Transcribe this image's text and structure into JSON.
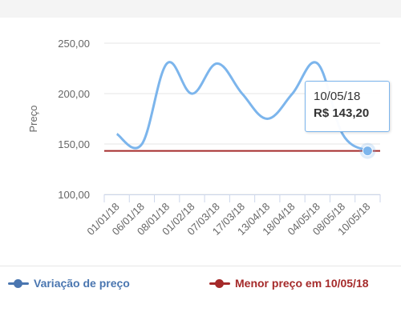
{
  "chart_data": {
    "type": "line",
    "ylabel": "Preço",
    "xlabel": "",
    "ylim": [
      100,
      250
    ],
    "y_ticks": [
      "100,00",
      "150,00",
      "200,00",
      "250,00"
    ],
    "y_tick_values": [
      100,
      150,
      200,
      250
    ],
    "grid": true,
    "categories": [
      "01/01/18",
      "06/01/18",
      "08/01/18",
      "01/02/18",
      "07/03/18",
      "17/03/18",
      "13/04/18",
      "18/04/18",
      "04/05/18",
      "08/05/18",
      "10/05/18"
    ],
    "series": [
      {
        "name": "Variação de preço",
        "color": "#7cb5ec",
        "values": [
          159.9,
          149.9,
          229.9,
          199.9,
          229.9,
          199.9,
          175.0,
          199.9,
          229.9,
          159.9,
          143.2
        ]
      },
      {
        "name": "Menor preço em 10/05/18",
        "color": "#a52a2a",
        "values": [
          143.2,
          143.2,
          143.2,
          143.2,
          143.2,
          143.2,
          143.2,
          143.2,
          143.2,
          143.2,
          143.2
        ]
      }
    ],
    "legend_position": "bottom",
    "tooltip": {
      "date": "10/05/18",
      "price": "R$ 143,20"
    }
  },
  "legend": {
    "series_1": "Variação de preço",
    "series_2": "Menor preço em 10/05/18"
  }
}
